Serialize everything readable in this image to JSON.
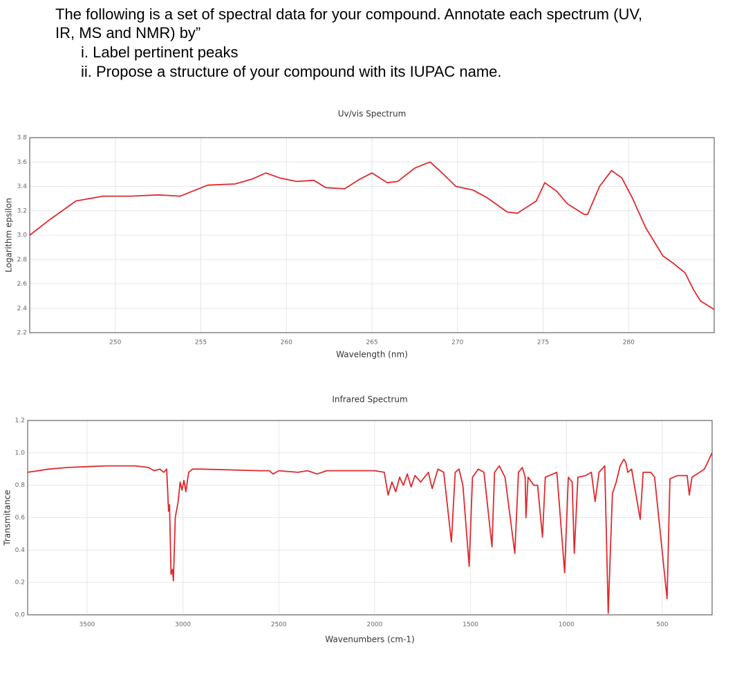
{
  "instructions": {
    "lines": [
      "The following is a set of spectral data for your compound. Annotate each spectrum (UV,",
      "IR, MS and NMR) by”"
    ],
    "items": [
      "i. Label pertinent peaks",
      "ii. Propose a structure of your compound with its IUPAC name."
    ]
  },
  "chart_data": [
    {
      "type": "line",
      "title": "Uv/vis Spectrum",
      "x_label": "Wavelength (nm)",
      "y_label": "Logarithm epsilon",
      "color": "#e0282d",
      "grid": true,
      "xlim": [
        245,
        285
      ],
      "xticks": [
        250,
        255,
        260,
        265,
        270,
        275,
        280
      ],
      "ylim": [
        2.2,
        3.8
      ],
      "yticks": [
        2.2,
        2.4,
        2.6,
        2.8,
        {
          "value": 3.0,
          "label": "3.0"
        },
        3.2,
        3.4,
        3.6,
        3.8
      ],
      "x": [
        245,
        246.1,
        247.7,
        249.3,
        250.9,
        252.5,
        253.8,
        255.4,
        257,
        258,
        258.8,
        259.6,
        260.6,
        261.6,
        262.3,
        263.4,
        264.3,
        265,
        265.9,
        266.5,
        267.5,
        268.4,
        269.1,
        269.9,
        270.9,
        271.7,
        272.9,
        273.5,
        274.6,
        275.1,
        275.8,
        276.4,
        277.4,
        277.6,
        278.3,
        279,
        279.6,
        280.2,
        281,
        282,
        282.6,
        283.3,
        283.8,
        284.2,
        285
      ],
      "values": [
        3.0,
        3.12,
        3.28,
        3.32,
        3.32,
        3.33,
        3.32,
        3.41,
        3.42,
        3.46,
        3.51,
        3.47,
        3.44,
        3.45,
        3.39,
        3.38,
        3.46,
        3.51,
        3.43,
        3.44,
        3.55,
        3.6,
        3.51,
        3.4,
        3.37,
        3.31,
        3.19,
        3.18,
        3.28,
        3.43,
        3.36,
        3.26,
        3.17,
        3.17,
        3.4,
        3.53,
        3.47,
        3.31,
        3.06,
        2.83,
        2.77,
        2.69,
        2.55,
        2.46,
        2.39
      ]
    },
    {
      "type": "line",
      "title": "Infrared Spectrum",
      "x_label": "Wavenumbers (cm-1)",
      "y_label": "Transmitance",
      "color": "#e0282d",
      "grid": true,
      "xlim": [
        3810,
        240
      ],
      "xticks": [
        3500,
        3000,
        2500,
        2000,
        1500,
        1000,
        500
      ],
      "ylim": [
        0,
        1.2
      ],
      "yticks": [
        {
          "value": 0,
          "label": "0.0"
        },
        0.2,
        0.4,
        0.6,
        0.8,
        {
          "value": 1,
          "label": "1.0"
        },
        1.2
      ],
      "x": [
        3810,
        3700,
        3600,
        3400,
        3250,
        3180,
        3150,
        3120,
        3100,
        3085,
        3075,
        3070,
        3062,
        3055,
        3050,
        3040,
        3025,
        3015,
        3005,
        2995,
        2985,
        2970,
        2950,
        2900,
        2600,
        2550,
        2530,
        2500,
        2400,
        2350,
        2300,
        2250,
        2000,
        1950,
        1930,
        1910,
        1890,
        1870,
        1850,
        1830,
        1810,
        1790,
        1760,
        1720,
        1700,
        1670,
        1640,
        1600,
        1580,
        1560,
        1540,
        1507,
        1490,
        1460,
        1430,
        1388,
        1375,
        1350,
        1320,
        1269,
        1250,
        1230,
        1215,
        1211,
        1200,
        1170,
        1150,
        1125,
        1110,
        1050,
        1009,
        990,
        970,
        959,
        940,
        900,
        870,
        850,
        830,
        800,
        782,
        760,
        740,
        720,
        700,
        690,
        680,
        660,
        615,
        600,
        560,
        540,
        475,
        460,
        420,
        370,
        359,
        345,
        280,
        240
      ],
      "values": [
        0.88,
        0.9,
        0.91,
        0.92,
        0.92,
        0.91,
        0.89,
        0.9,
        0.88,
        0.9,
        0.64,
        0.68,
        0.25,
        0.28,
        0.21,
        0.6,
        0.7,
        0.82,
        0.77,
        0.83,
        0.76,
        0.88,
        0.9,
        0.9,
        0.89,
        0.89,
        0.87,
        0.89,
        0.88,
        0.89,
        0.87,
        0.89,
        0.89,
        0.88,
        0.74,
        0.82,
        0.76,
        0.85,
        0.8,
        0.87,
        0.79,
        0.86,
        0.82,
        0.88,
        0.78,
        0.9,
        0.88,
        0.45,
        0.88,
        0.9,
        0.8,
        0.3,
        0.85,
        0.9,
        0.88,
        0.42,
        0.88,
        0.92,
        0.85,
        0.38,
        0.88,
        0.91,
        0.85,
        0.6,
        0.85,
        0.8,
        0.8,
        0.48,
        0.85,
        0.88,
        0.26,
        0.85,
        0.82,
        0.38,
        0.85,
        0.86,
        0.88,
        0.7,
        0.88,
        0.92,
        0.01,
        0.75,
        0.82,
        0.92,
        0.96,
        0.94,
        0.88,
        0.9,
        0.59,
        0.88,
        0.88,
        0.85,
        0.1,
        0.84,
        0.86,
        0.86,
        0.74,
        0.85,
        0.9,
        1.0
      ]
    }
  ]
}
